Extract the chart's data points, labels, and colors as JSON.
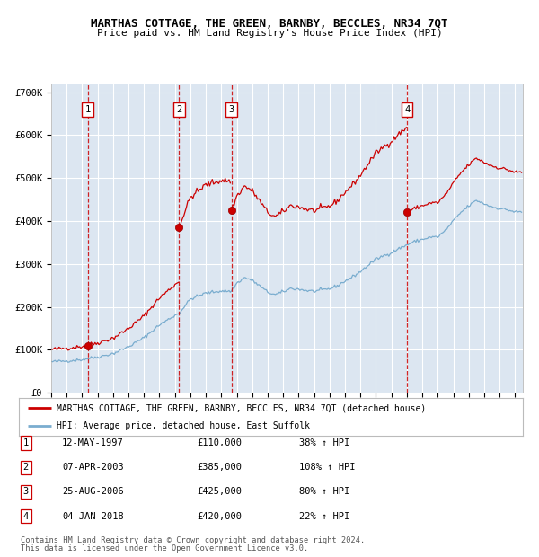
{
  "title": "MARTHAS COTTAGE, THE GREEN, BARNBY, BECCLES, NR34 7QT",
  "subtitle": "Price paid vs. HM Land Registry's House Price Index (HPI)",
  "legend_line1": "MARTHAS COTTAGE, THE GREEN, BARNBY, BECCLES, NR34 7QT (detached house)",
  "legend_line2": "HPI: Average price, detached house, East Suffolk",
  "footnote1": "Contains HM Land Registry data © Crown copyright and database right 2024.",
  "footnote2": "This data is licensed under the Open Government Licence v3.0.",
  "sales": [
    {
      "num": 1,
      "date": "12-MAY-1997",
      "year": 1997.36,
      "price": 110000,
      "pct": "38%",
      "dir": "↑"
    },
    {
      "num": 2,
      "date": "07-APR-2003",
      "year": 2003.27,
      "price": 385000,
      "pct": "108%",
      "dir": "↑"
    },
    {
      "num": 3,
      "date": "25-AUG-2006",
      "year": 2006.65,
      "price": 425000,
      "pct": "80%",
      "dir": "↑"
    },
    {
      "num": 4,
      "date": "04-JAN-2018",
      "year": 2018.01,
      "price": 420000,
      "pct": "22%",
      "dir": "↑"
    }
  ],
  "xlim": [
    1995.0,
    2025.5
  ],
  "ylim": [
    0,
    720000
  ],
  "yticks": [
    0,
    100000,
    200000,
    300000,
    400000,
    500000,
    600000,
    700000
  ],
  "ytick_labels": [
    "£0",
    "£100K",
    "£200K",
    "£300K",
    "£400K",
    "£500K",
    "£600K",
    "£700K"
  ],
  "red_color": "#cc0000",
  "blue_color": "#7aadcf",
  "bg_color": "#dce6f1",
  "grid_color": "#ffffff",
  "sale_dot_color": "#cc0000",
  "dashed_color": "#cc0000",
  "label_box_color": "#ffffff",
  "label_box_edge": "#cc0000",
  "hpi_anchors": [
    [
      1995.0,
      72000
    ],
    [
      1995.5,
      73000
    ],
    [
      1996.0,
      74000
    ],
    [
      1996.5,
      75500
    ],
    [
      1997.0,
      77000
    ],
    [
      1997.36,
      79700
    ],
    [
      1998.0,
      83000
    ],
    [
      1999.0,
      91000
    ],
    [
      2000.0,
      107000
    ],
    [
      2001.0,
      128000
    ],
    [
      2002.0,
      158000
    ],
    [
      2003.0,
      180000
    ],
    [
      2003.27,
      185000
    ],
    [
      2004.0,
      218000
    ],
    [
      2005.0,
      232000
    ],
    [
      2006.0,
      237000
    ],
    [
      2006.65,
      236111
    ],
    [
      2007.0,
      255000
    ],
    [
      2007.5,
      268000
    ],
    [
      2008.0,
      262000
    ],
    [
      2008.5,
      248000
    ],
    [
      2009.0,
      234000
    ],
    [
      2009.5,
      228000
    ],
    [
      2010.0,
      235000
    ],
    [
      2010.5,
      243000
    ],
    [
      2011.0,
      241000
    ],
    [
      2011.5,
      238000
    ],
    [
      2012.0,
      236000
    ],
    [
      2012.5,
      239000
    ],
    [
      2013.0,
      242000
    ],
    [
      2013.5,
      249000
    ],
    [
      2014.0,
      260000
    ],
    [
      2014.5,
      270000
    ],
    [
      2015.0,
      282000
    ],
    [
      2015.5,
      297000
    ],
    [
      2016.0,
      311000
    ],
    [
      2016.5,
      319000
    ],
    [
      2017.0,
      326000
    ],
    [
      2017.5,
      336000
    ],
    [
      2018.0,
      344000
    ],
    [
      2018.01,
      344262
    ],
    [
      2018.5,
      352000
    ],
    [
      2019.0,
      357000
    ],
    [
      2019.5,
      362000
    ],
    [
      2020.0,
      363000
    ],
    [
      2020.5,
      378000
    ],
    [
      2021.0,
      400000
    ],
    [
      2021.5,
      420000
    ],
    [
      2022.0,
      435000
    ],
    [
      2022.5,
      448000
    ],
    [
      2023.0,
      440000
    ],
    [
      2023.5,
      433000
    ],
    [
      2024.0,
      429000
    ],
    [
      2024.5,
      426000
    ],
    [
      2025.0,
      421000
    ],
    [
      2025.3,
      421000
    ]
  ],
  "noise_seed": 42,
  "noise_scale": 1800
}
